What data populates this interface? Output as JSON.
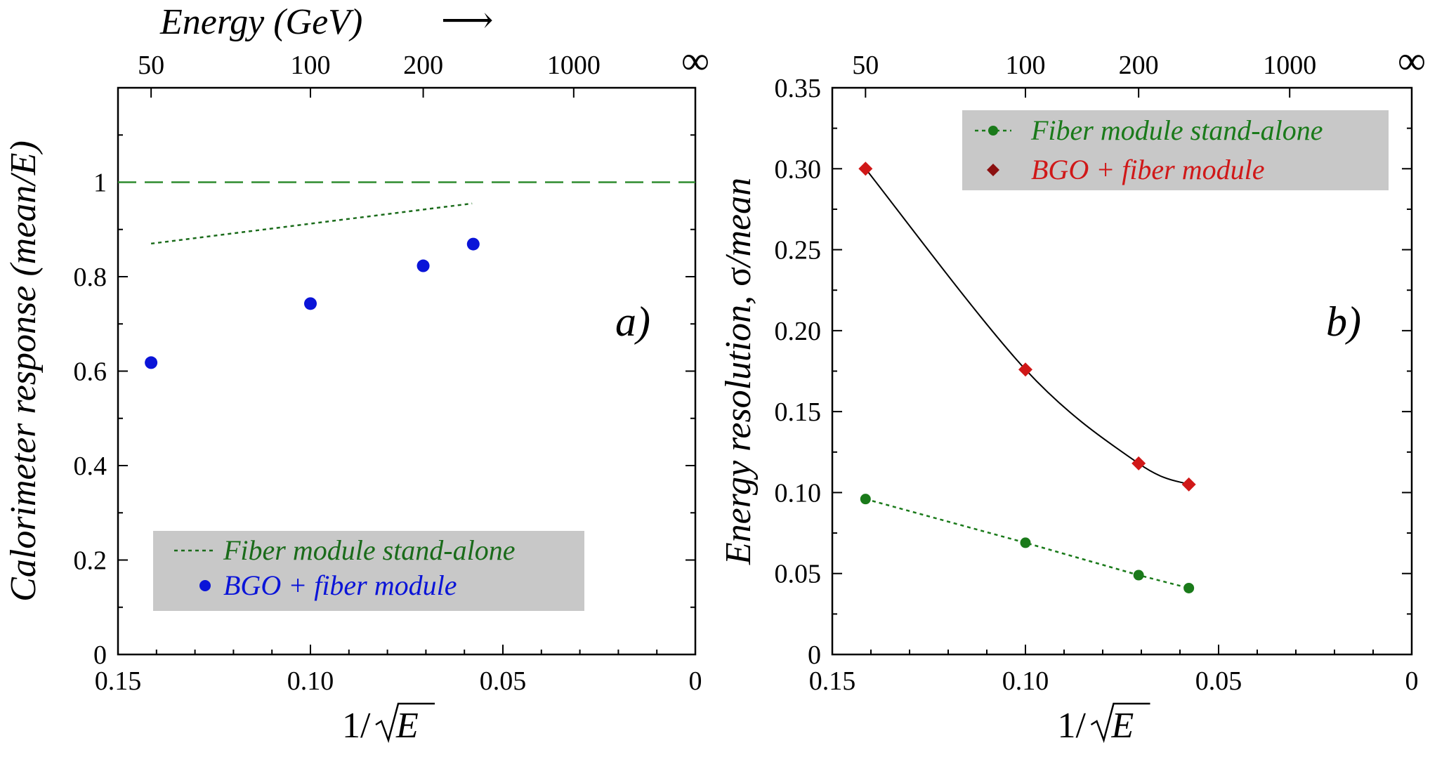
{
  "top_axis": {
    "title": "Energy (GeV)",
    "arrow": "⟶",
    "labels": [
      "50",
      "100",
      "200",
      "1000",
      "∞"
    ],
    "values_inv_sqrt": [
      0.1414,
      0.1,
      0.0707,
      0.0316,
      0
    ]
  },
  "chart_data": [
    {
      "panel": "a)",
      "type": "scatter",
      "xlabel_prefix": "1/",
      "xlabel_var": "E",
      "ylabel": "Calorimeter response (mean/E)",
      "xlim": [
        0.15,
        0
      ],
      "ylim": [
        0,
        1.2
      ],
      "x_ticks": [
        0.15,
        0.1,
        0.05,
        0
      ],
      "x_tick_labels": [
        "0.15",
        "0.10",
        "0.05",
        "0"
      ],
      "y_ticks": [
        0,
        0.2,
        0.4,
        0.6,
        0.8,
        1
      ],
      "y_tick_labels": [
        "0",
        "0.2",
        "0.4",
        "0.6",
        "0.8",
        "1"
      ],
      "reference_line": {
        "y": 1,
        "color": "#2e8b2e",
        "style": "long-dash"
      },
      "series": [
        {
          "name": "Fiber module stand-alone",
          "kind": "dotted-line",
          "color": "#1a6b1a",
          "points": [
            [
              0.1414,
              0.87
            ],
            [
              0.058,
              0.955
            ]
          ]
        },
        {
          "name": "BGO + fiber module",
          "kind": "circle-markers",
          "color": "#0a14d8",
          "points": [
            [
              0.1414,
              0.618
            ],
            [
              0.1,
              0.743
            ],
            [
              0.0707,
              0.823
            ],
            [
              0.0577,
              0.869
            ]
          ]
        }
      ],
      "legend": {
        "placement": "bottom-left",
        "background": "#c8c8c8"
      }
    },
    {
      "panel": "b)",
      "type": "scatter",
      "xlabel_prefix": "1/",
      "xlabel_var": "E",
      "ylabel_prefix": "Energy resolution, ",
      "ylabel_sigma": "σ",
      "ylabel_suffix": "/mean",
      "xlim": [
        0.15,
        0
      ],
      "ylim": [
        0,
        0.35
      ],
      "x_ticks": [
        0.15,
        0.1,
        0.05,
        0
      ],
      "x_tick_labels": [
        "0.15",
        "0.10",
        "0.05",
        "0"
      ],
      "y_ticks": [
        0,
        0.05,
        0.1,
        0.15,
        0.2,
        0.25,
        0.3,
        0.35
      ],
      "y_tick_labels": [
        "0",
        "0.05",
        "0.10",
        "0.15",
        "0.20",
        "0.25",
        "0.30",
        "0.35"
      ],
      "series": [
        {
          "name": "Fiber module stand-alone",
          "kind": "circle-markers-dotted-line",
          "color": "#1a7a1a",
          "points": [
            [
              0.1414,
              0.096
            ],
            [
              0.1,
              0.069
            ],
            [
              0.0707,
              0.049
            ],
            [
              0.0577,
              0.041
            ]
          ]
        },
        {
          "name": "BGO + fiber module",
          "kind": "diamond-markers-curve",
          "color": "#d01818",
          "legend_color": "#8b1010",
          "points": [
            [
              0.1414,
              0.3
            ],
            [
              0.1,
              0.176
            ],
            [
              0.0707,
              0.118
            ],
            [
              0.0577,
              0.105
            ]
          ]
        }
      ],
      "legend": {
        "placement": "top-right",
        "background": "#c8c8c8"
      }
    }
  ]
}
